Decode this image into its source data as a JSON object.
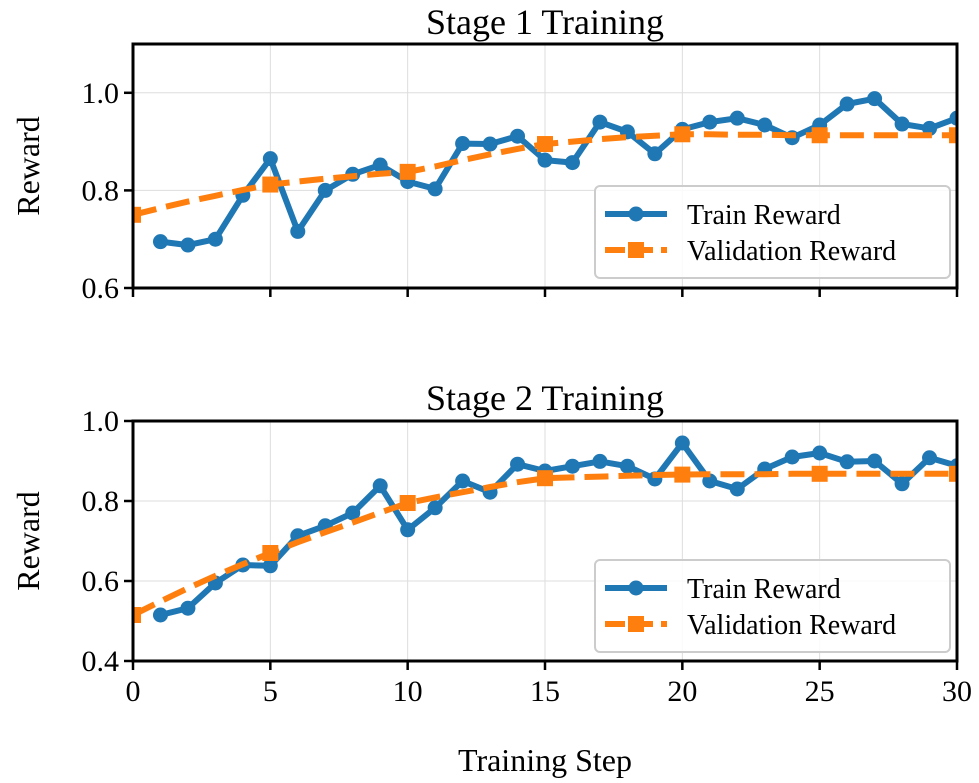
{
  "chart_data": [
    {
      "type": "line",
      "title": "Stage 1 Training",
      "xlabel": "",
      "ylabel": "Reward",
      "xlim": [
        0,
        30
      ],
      "ylim": [
        0.6,
        1.1
      ],
      "xticks": [
        0,
        5,
        10,
        15,
        20,
        25,
        30
      ],
      "yticks": [
        0.6,
        0.8,
        1.0
      ],
      "ytick_labels": [
        "0.6",
        "0.8",
        "1.0"
      ],
      "grid": true,
      "legend": "lower-right",
      "series": [
        {
          "name": "Train Reward",
          "color": "#1f77b4",
          "style": "solid-circle",
          "x": [
            1,
            2,
            3,
            4,
            5,
            6,
            7,
            8,
            9,
            10,
            11,
            12,
            13,
            14,
            15,
            16,
            17,
            18,
            19,
            20,
            21,
            22,
            23,
            24,
            25,
            26,
            27,
            28,
            29,
            30
          ],
          "y": [
            0.695,
            0.688,
            0.7,
            0.79,
            0.865,
            0.716,
            0.8,
            0.833,
            0.852,
            0.818,
            0.803,
            0.896,
            0.895,
            0.911,
            0.862,
            0.857,
            0.94,
            0.92,
            0.875,
            0.925,
            0.94,
            0.948,
            0.934,
            0.908,
            0.934,
            0.977,
            0.988,
            0.936,
            0.927,
            0.948
          ]
        },
        {
          "name": "Validation Reward",
          "color": "#ff7f0e",
          "style": "dashed-square",
          "x": [
            0,
            5,
            10,
            15,
            20,
            25,
            30
          ],
          "y": [
            0.75,
            0.812,
            0.838,
            0.895,
            0.915,
            0.913,
            0.913
          ],
          "line_x": [
            0,
            1,
            2,
            3,
            4,
            5,
            6,
            7,
            8,
            9,
            10,
            11,
            12,
            13,
            14,
            15,
            16,
            17,
            18,
            19,
            20,
            21,
            22,
            23,
            24,
            25,
            26,
            27,
            28,
            29,
            30
          ],
          "line_y": [
            0.75,
            0.764,
            0.777,
            0.789,
            0.801,
            0.812,
            0.818,
            0.824,
            0.829,
            0.834,
            0.838,
            0.849,
            0.862,
            0.874,
            0.885,
            0.895,
            0.9,
            0.905,
            0.909,
            0.912,
            0.915,
            0.915,
            0.914,
            0.914,
            0.913,
            0.913,
            0.913,
            0.913,
            0.913,
            0.913,
            0.913
          ]
        }
      ]
    },
    {
      "type": "line",
      "title": "Stage 2 Training",
      "xlabel": "Training Step",
      "ylabel": "Reward",
      "xlim": [
        0,
        30
      ],
      "ylim": [
        0.4,
        1.0
      ],
      "xticks": [
        0,
        5,
        10,
        15,
        20,
        25,
        30
      ],
      "yticks": [
        0.4,
        0.6,
        0.8,
        1.0
      ],
      "ytick_labels": [
        "0.4",
        "0.6",
        "0.8",
        "1.0"
      ],
      "grid": true,
      "legend": "lower-right",
      "series": [
        {
          "name": "Train Reward",
          "color": "#1f77b4",
          "style": "solid-circle",
          "x": [
            1,
            2,
            3,
            4,
            5,
            6,
            7,
            8,
            9,
            10,
            11,
            12,
            13,
            14,
            15,
            16,
            17,
            18,
            19,
            20,
            21,
            22,
            23,
            24,
            25,
            26,
            27,
            28,
            29,
            30
          ],
          "y": [
            0.515,
            0.532,
            0.595,
            0.64,
            0.638,
            0.713,
            0.738,
            0.77,
            0.838,
            0.728,
            0.783,
            0.85,
            0.822,
            0.892,
            0.875,
            0.887,
            0.899,
            0.887,
            0.855,
            0.945,
            0.85,
            0.83,
            0.88,
            0.91,
            0.92,
            0.898,
            0.9,
            0.843,
            0.908,
            0.888
          ]
        },
        {
          "name": "Validation Reward",
          "color": "#ff7f0e",
          "style": "dashed-square",
          "x": [
            0,
            5,
            10,
            15,
            20,
            25,
            30
          ],
          "y": [
            0.515,
            0.67,
            0.795,
            0.857,
            0.866,
            0.868,
            0.868
          ],
          "line_x": [
            0,
            1,
            2,
            3,
            4,
            5,
            6,
            7,
            8,
            9,
            10,
            11,
            12,
            13,
            14,
            15,
            16,
            17,
            18,
            19,
            20,
            21,
            22,
            23,
            24,
            25,
            26,
            27,
            28,
            29,
            30
          ],
          "line_y": [
            0.515,
            0.549,
            0.582,
            0.613,
            0.642,
            0.67,
            0.697,
            0.722,
            0.746,
            0.771,
            0.795,
            0.809,
            0.822,
            0.835,
            0.847,
            0.857,
            0.859,
            0.861,
            0.863,
            0.865,
            0.866,
            0.867,
            0.867,
            0.867,
            0.868,
            0.868,
            0.868,
            0.868,
            0.868,
            0.868,
            0.868
          ]
        }
      ]
    }
  ]
}
